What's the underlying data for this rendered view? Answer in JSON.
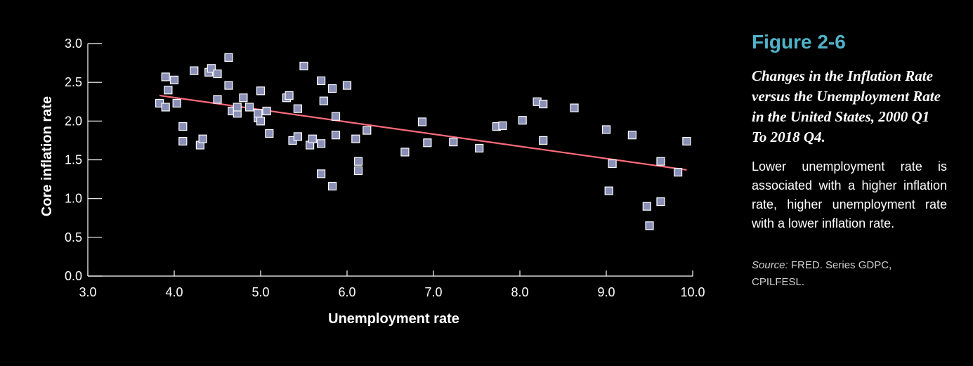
{
  "figure": {
    "number": "Figure 2-6",
    "title": "Changes in the Inflation Rate versus the Unemployment Rate in the United States, 2000 Q1 To 2018 Q4.",
    "caption": "Lower unemployment rate is associated with a higher inflation rate, higher unemployment rate with a lower inflation rate.",
    "source_label": "Source:",
    "source_text": "FRED. Series GDPC, CPILFESL.",
    "accent_color": "#4fb3c9"
  },
  "chart_data": {
    "type": "scatter",
    "title": "",
    "xlabel": "Unemployment rate",
    "ylabel": "Core inflation rate",
    "xlim": [
      3.0,
      10.0
    ],
    "ylim": [
      0.0,
      3.0
    ],
    "x_ticks": [
      "3.0",
      "4.0",
      "5.0",
      "6.0",
      "7.0",
      "8.0",
      "9.0",
      "10.0"
    ],
    "y_ticks": [
      "0.0",
      "0.5",
      "1.0",
      "1.5",
      "2.0",
      "2.5",
      "3.0"
    ],
    "grid": false,
    "marker_color": "#8a8fb8",
    "marker_edge_color": "#ffffff",
    "trendline_color": "#ff6b7a",
    "trendline": {
      "x": [
        3.83,
        9.93
      ],
      "y": [
        2.33,
        1.37
      ]
    },
    "points": [
      {
        "x": 3.83,
        "y": 2.23
      },
      {
        "x": 3.9,
        "y": 2.57
      },
      {
        "x": 3.9,
        "y": 2.18
      },
      {
        "x": 3.93,
        "y": 2.4
      },
      {
        "x": 4.0,
        "y": 2.53
      },
      {
        "x": 4.03,
        "y": 2.23
      },
      {
        "x": 4.1,
        "y": 1.93
      },
      {
        "x": 4.1,
        "y": 1.74
      },
      {
        "x": 4.23,
        "y": 2.65
      },
      {
        "x": 4.3,
        "y": 1.69
      },
      {
        "x": 4.33,
        "y": 1.77
      },
      {
        "x": 4.4,
        "y": 2.63
      },
      {
        "x": 4.43,
        "y": 2.68
      },
      {
        "x": 4.5,
        "y": 2.61
      },
      {
        "x": 4.5,
        "y": 2.28
      },
      {
        "x": 4.63,
        "y": 2.82
      },
      {
        "x": 4.63,
        "y": 2.46
      },
      {
        "x": 4.67,
        "y": 2.13
      },
      {
        "x": 4.73,
        "y": 2.1
      },
      {
        "x": 4.73,
        "y": 2.18
      },
      {
        "x": 4.8,
        "y": 2.3
      },
      {
        "x": 4.87,
        "y": 2.18
      },
      {
        "x": 4.97,
        "y": 2.04
      },
      {
        "x": 4.97,
        "y": 2.1
      },
      {
        "x": 5.0,
        "y": 2.39
      },
      {
        "x": 5.0,
        "y": 2.0
      },
      {
        "x": 5.07,
        "y": 2.13
      },
      {
        "x": 5.1,
        "y": 1.84
      },
      {
        "x": 5.3,
        "y": 2.3
      },
      {
        "x": 5.33,
        "y": 2.33
      },
      {
        "x": 5.37,
        "y": 1.75
      },
      {
        "x": 5.43,
        "y": 2.16
      },
      {
        "x": 5.43,
        "y": 1.8
      },
      {
        "x": 5.5,
        "y": 2.71
      },
      {
        "x": 5.57,
        "y": 1.69
      },
      {
        "x": 5.6,
        "y": 1.77
      },
      {
        "x": 5.7,
        "y": 2.52
      },
      {
        "x": 5.7,
        "y": 1.71
      },
      {
        "x": 5.7,
        "y": 1.32
      },
      {
        "x": 5.73,
        "y": 2.26
      },
      {
        "x": 5.83,
        "y": 2.42
      },
      {
        "x": 5.83,
        "y": 1.16
      },
      {
        "x": 5.87,
        "y": 2.06
      },
      {
        "x": 5.87,
        "y": 1.82
      },
      {
        "x": 6.0,
        "y": 2.46
      },
      {
        "x": 6.1,
        "y": 1.77
      },
      {
        "x": 6.13,
        "y": 1.48
      },
      {
        "x": 6.13,
        "y": 1.36
      },
      {
        "x": 6.23,
        "y": 1.88
      },
      {
        "x": 6.67,
        "y": 1.6
      },
      {
        "x": 6.87,
        "y": 1.99
      },
      {
        "x": 6.93,
        "y": 1.72
      },
      {
        "x": 7.23,
        "y": 1.73
      },
      {
        "x": 7.53,
        "y": 1.65
      },
      {
        "x": 7.73,
        "y": 1.93
      },
      {
        "x": 7.8,
        "y": 1.94
      },
      {
        "x": 8.03,
        "y": 2.01
      },
      {
        "x": 8.2,
        "y": 2.25
      },
      {
        "x": 8.27,
        "y": 2.22
      },
      {
        "x": 8.27,
        "y": 1.75
      },
      {
        "x": 8.63,
        "y": 2.17
      },
      {
        "x": 9.0,
        "y": 1.89
      },
      {
        "x": 9.03,
        "y": 1.1
      },
      {
        "x": 9.07,
        "y": 1.45
      },
      {
        "x": 9.3,
        "y": 1.82
      },
      {
        "x": 9.47,
        "y": 0.9
      },
      {
        "x": 9.5,
        "y": 0.65
      },
      {
        "x": 9.63,
        "y": 1.48
      },
      {
        "x": 9.63,
        "y": 0.96
      },
      {
        "x": 9.83,
        "y": 1.34
      },
      {
        "x": 9.93,
        "y": 1.74
      }
    ]
  }
}
